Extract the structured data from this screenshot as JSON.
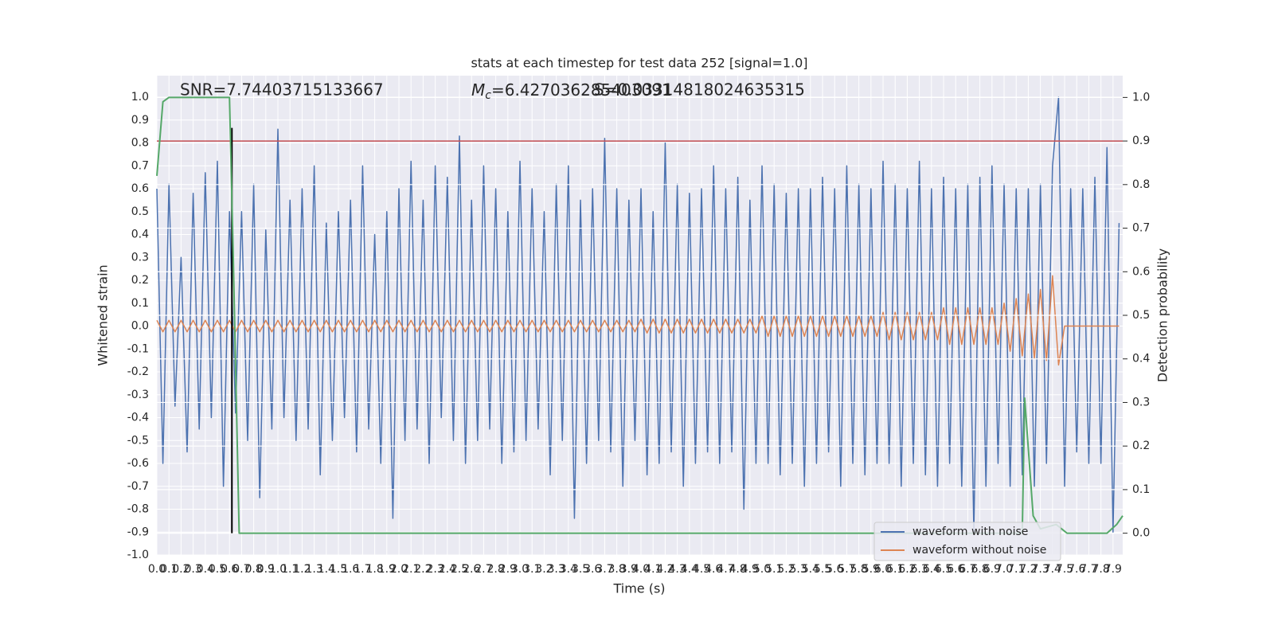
{
  "chart_data": {
    "type": "line",
    "title": "stats at each timestep for test data 252 [signal=1.0]",
    "xlabel": "Time (s)",
    "ylabel": "Whitened strain",
    "y2label": "Detection probability",
    "annotations": [
      {
        "text": "SNR=7.74403715133667"
      },
      {
        "symbol": "M",
        "subscript": "c",
        "text": "=6.427036285403091"
      },
      {
        "text": "S=0.03314818024635315"
      }
    ],
    "xlim": [
      0,
      7.98
    ],
    "ylim": [
      -1.0,
      1.094
    ],
    "y2lim": [
      -0.05,
      1.05
    ],
    "xticks": [
      {
        "value": 0,
        "label": "0.0"
      },
      0.1,
      0.2,
      0.3,
      0.4,
      0.5,
      0.6,
      0.7,
      0.8,
      0.9,
      {
        "value": 1,
        "label": "1.0"
      },
      1.1,
      1.2,
      1.3,
      1.4,
      1.5,
      1.6,
      1.7,
      1.8,
      1.9,
      {
        "value": 2,
        "label": "2.0"
      },
      2.1,
      2.2,
      2.3,
      2.4,
      2.5,
      2.6,
      2.7,
      2.8,
      2.9,
      {
        "value": 3,
        "label": "3.0"
      },
      3.1,
      3.2,
      3.3,
      3.4,
      3.5,
      3.6,
      3.7,
      3.8,
      3.9,
      {
        "value": 4,
        "label": "4.0"
      },
      4.1,
      4.2,
      4.3,
      4.4,
      4.5,
      4.6,
      4.7,
      4.8,
      4.9,
      {
        "value": 5,
        "label": "5.0"
      },
      5.1,
      5.2,
      5.3,
      5.4,
      5.5,
      5.6,
      5.7,
      5.8,
      5.9,
      {
        "value": 6,
        "label": "6.0"
      },
      6.1,
      6.2,
      6.3,
      6.4,
      6.5,
      6.6,
      6.7,
      6.8,
      6.9,
      {
        "value": 7,
        "label": "7.0"
      },
      7.1,
      7.2,
      7.3,
      7.4,
      7.5,
      7.6,
      7.7,
      7.8,
      7.9
    ],
    "yticks": [
      {
        "value": -1,
        "label": "-1.0"
      },
      -0.9,
      -0.8,
      -0.7,
      -0.6,
      -0.5,
      -0.4,
      -0.3,
      -0.2,
      -0.1,
      {
        "value": 0,
        "label": "0.0"
      },
      0.1,
      0.2,
      0.3,
      0.4,
      0.5,
      0.6,
      0.7,
      0.8,
      0.9,
      {
        "value": 1,
        "label": "1.0"
      }
    ],
    "y2ticks": [
      {
        "value": 0,
        "label": "0.0"
      },
      0.1,
      0.2,
      0.3,
      0.4,
      0.5,
      0.6,
      0.7,
      0.8,
      0.9,
      {
        "value": 1,
        "label": "1.0"
      }
    ],
    "grid": true,
    "legend": "lower right",
    "x": [
      0,
      0.05,
      0.1,
      0.15,
      0.2,
      0.25,
      0.3,
      0.35,
      0.4,
      0.45,
      0.5,
      0.55,
      0.6,
      0.65,
      0.7,
      0.75,
      0.8,
      0.85,
      0.9,
      0.95,
      1,
      1.05,
      1.1,
      1.15,
      1.2,
      1.25,
      1.3,
      1.35,
      1.4,
      1.45,
      1.5,
      1.55,
      1.6,
      1.65,
      1.7,
      1.75,
      1.8,
      1.85,
      1.9,
      1.95,
      2,
      2.05,
      2.1,
      2.15,
      2.2,
      2.25,
      2.3,
      2.35,
      2.4,
      2.45,
      2.5,
      2.55,
      2.6,
      2.65,
      2.7,
      2.75,
      2.8,
      2.85,
      2.9,
      2.95,
      3,
      3.05,
      3.1,
      3.15,
      3.2,
      3.25,
      3.3,
      3.35,
      3.4,
      3.45,
      3.5,
      3.55,
      3.6,
      3.65,
      3.7,
      3.75,
      3.8,
      3.85,
      3.9,
      3.95,
      4,
      4.05,
      4.1,
      4.15,
      4.2,
      4.25,
      4.3,
      4.35,
      4.4,
      4.45,
      4.5,
      4.55,
      4.6,
      4.65,
      4.7,
      4.75,
      4.8,
      4.85,
      4.9,
      4.95,
      5,
      5.05,
      5.1,
      5.15,
      5.2,
      5.25,
      5.3,
      5.35,
      5.4,
      5.45,
      5.5,
      5.55,
      5.6,
      5.65,
      5.7,
      5.75,
      5.8,
      5.85,
      5.9,
      5.95,
      6,
      6.05,
      6.1,
      6.15,
      6.2,
      6.25,
      6.3,
      6.35,
      6.4,
      6.45,
      6.5,
      6.55,
      6.6,
      6.65,
      6.7,
      6.75,
      6.8,
      6.85,
      6.9,
      6.95,
      7,
      7.05,
      7.1,
      7.15,
      7.2,
      7.25,
      7.3,
      7.35,
      7.4,
      7.45,
      7.5,
      7.55,
      7.6,
      7.65,
      7.7,
      7.75,
      7.8,
      7.85,
      7.9,
      7.95
    ],
    "series": [
      {
        "name": "waveform with noise",
        "color": "#4c72b0",
        "values": [
          0.6,
          -0.6,
          0.62,
          -0.35,
          0.3,
          -0.55,
          0.58,
          -0.45,
          0.67,
          -0.4,
          0.72,
          -0.7,
          0.5,
          -0.38,
          0.5,
          -0.5,
          0.62,
          -0.75,
          0.42,
          -0.45,
          0.86,
          -0.4,
          0.55,
          -0.5,
          0.6,
          -0.45,
          0.7,
          -0.65,
          0.45,
          -0.5,
          0.5,
          -0.4,
          0.55,
          -0.55,
          0.7,
          -0.45,
          0.4,
          -0.6,
          0.5,
          -0.84,
          0.6,
          -0.5,
          0.72,
          -0.45,
          0.55,
          -0.6,
          0.7,
          -0.4,
          0.65,
          -0.5,
          0.83,
          -0.6,
          0.55,
          -0.5,
          0.7,
          -0.45,
          0.6,
          -0.6,
          0.5,
          -0.55,
          0.72,
          -0.5,
          0.6,
          -0.45,
          0.5,
          -0.65,
          0.62,
          -0.5,
          0.7,
          -0.84,
          0.55,
          -0.6,
          0.6,
          -0.5,
          0.82,
          -0.55,
          0.6,
          -0.7,
          0.55,
          -0.5,
          0.6,
          -0.65,
          0.5,
          -0.6,
          0.8,
          -0.55,
          0.62,
          -0.7,
          0.58,
          -0.6,
          0.6,
          -0.55,
          0.7,
          -0.6,
          0.6,
          -0.55,
          0.65,
          -0.8,
          0.55,
          -0.6,
          0.7,
          -0.6,
          0.62,
          -0.65,
          0.58,
          -0.6,
          0.6,
          -0.7,
          0.6,
          -0.6,
          0.65,
          -0.55,
          0.6,
          -0.7,
          0.7,
          -0.6,
          0.62,
          -0.65,
          0.6,
          -0.6,
          0.72,
          -0.6,
          0.62,
          -0.7,
          0.6,
          -0.6,
          0.72,
          -0.65,
          0.6,
          -0.7,
          0.65,
          -0.6,
          0.6,
          -0.7,
          0.62,
          -0.9,
          0.65,
          -0.7,
          0.7,
          -0.6,
          0.62,
          -0.7,
          0.6,
          -0.65,
          0.6,
          -0.7,
          0.62,
          -0.6,
          0.7,
          1.0,
          -0.7,
          0.6,
          -0.55,
          0.6,
          -0.6,
          0.65,
          -0.6,
          0.78,
          -0.9,
          0.45
        ]
      },
      {
        "name": "waveform without noise",
        "color": "#dd8452",
        "values": [
          0.025,
          -0.025,
          0.025,
          -0.025,
          0.025,
          -0.025,
          0.025,
          -0.025,
          0.025,
          -0.025,
          0.025,
          -0.025,
          0.025,
          -0.025,
          0.025,
          -0.025,
          0.025,
          -0.025,
          0.025,
          -0.025,
          0.025,
          -0.025,
          0.025,
          -0.025,
          0.025,
          -0.025,
          0.025,
          -0.025,
          0.025,
          -0.025,
          0.025,
          -0.025,
          0.025,
          -0.025,
          0.025,
          -0.025,
          0.025,
          -0.025,
          0.025,
          -0.025,
          0.025,
          -0.025,
          0.025,
          -0.025,
          0.025,
          -0.025,
          0.025,
          -0.025,
          0.025,
          -0.025,
          0.025,
          -0.025,
          0.025,
          -0.025,
          0.025,
          -0.025,
          0.025,
          -0.025,
          0.025,
          -0.025,
          0.025,
          -0.025,
          0.025,
          -0.025,
          0.025,
          -0.025,
          0.025,
          -0.025,
          0.025,
          -0.025,
          0.025,
          -0.025,
          0.025,
          -0.025,
          0.025,
          -0.025,
          0.025,
          -0.025,
          0.025,
          -0.025,
          0.03,
          -0.03,
          0.03,
          -0.03,
          0.03,
          -0.03,
          0.03,
          -0.03,
          0.03,
          -0.03,
          0.03,
          -0.03,
          0.03,
          -0.03,
          0.03,
          -0.03,
          0.03,
          -0.03,
          0.03,
          -0.03,
          0.045,
          -0.045,
          0.045,
          -0.045,
          0.045,
          -0.045,
          0.045,
          -0.045,
          0.045,
          -0.045,
          0.045,
          -0.045,
          0.045,
          -0.045,
          0.045,
          -0.045,
          0.045,
          -0.045,
          0.045,
          -0.045,
          0.06,
          -0.06,
          0.06,
          -0.06,
          0.06,
          -0.06,
          0.06,
          -0.06,
          0.06,
          -0.06,
          0.08,
          -0.08,
          0.08,
          -0.08,
          0.08,
          -0.08,
          0.08,
          -0.08,
          0.08,
          -0.08,
          0.1,
          -0.11,
          0.12,
          -0.13,
          0.14,
          -0.14,
          0.16,
          -0.15,
          0.22,
          -0.17,
          0,
          0,
          0,
          0,
          0,
          0,
          0,
          0,
          0,
          0
        ]
      },
      {
        "color": "#55a868",
        "axis": "y2",
        "x": [
          0,
          0.05,
          0.1,
          0.6,
          0.63,
          0.68,
          7.15,
          7.17,
          7.24,
          7.3,
          7.43,
          7.52,
          7.85,
          7.93,
          7.98
        ],
        "values": [
          0.82,
          0.99,
          1.0,
          1.0,
          0.65,
          0.0,
          0.0,
          0.31,
          0.04,
          0.01,
          0.02,
          0.0,
          0.0,
          0.02,
          0.04
        ]
      }
    ],
    "hlines": [
      {
        "y": 0.9,
        "color": "#c44e52",
        "axis": "y2"
      }
    ],
    "vlines": [
      {
        "x": 0.62,
        "ymin": 0.0,
        "ymax": 0.93,
        "color": "#000000",
        "axis": "y2"
      }
    ]
  }
}
